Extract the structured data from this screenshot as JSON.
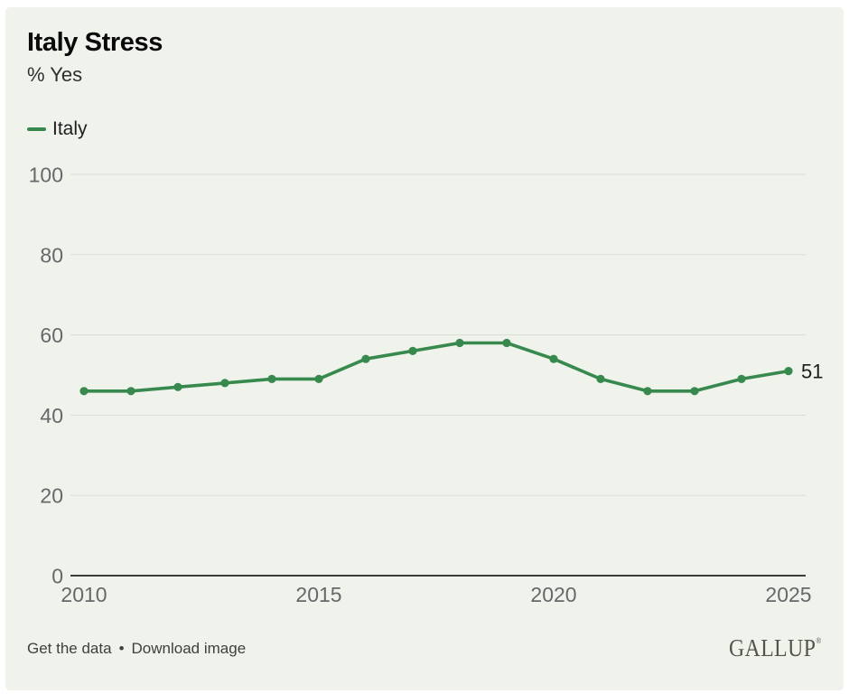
{
  "header": {
    "title": "Italy Stress",
    "subtitle": "% Yes"
  },
  "legend": {
    "items": [
      {
        "label": "Italy",
        "color": "#38894e"
      }
    ]
  },
  "footer": {
    "links": [
      {
        "label": "Get the data"
      },
      {
        "label": "Download image"
      }
    ],
    "separator": "•",
    "brand": "GALLUP",
    "brand_mark": "®"
  },
  "colors": {
    "card_background": "#eff3ec",
    "page_background": "#ffffff",
    "line": "#38894e",
    "grid": "#d9ded6",
    "axis": "#3d3d3d",
    "tick_label": "#66686a",
    "end_label": "#1c1c1c"
  },
  "chart_data": {
    "type": "line",
    "title": "Italy Stress",
    "ylabel": "% Yes",
    "x": [
      2010,
      2011,
      2012,
      2013,
      2014,
      2015,
      2016,
      2017,
      2018,
      2019,
      2020,
      2021,
      2022,
      2023,
      2024,
      2025
    ],
    "series": [
      {
        "name": "Italy",
        "color": "#38894e",
        "values": [
          46,
          46,
          47,
          48,
          49,
          49,
          54,
          56,
          58,
          58,
          54,
          49,
          46,
          46,
          49,
          51
        ]
      }
    ],
    "ylim": [
      0,
      100
    ],
    "yticks": [
      0,
      20,
      40,
      60,
      80,
      100
    ],
    "xticks": [
      2010,
      2015,
      2020,
      2025
    ],
    "grid": true,
    "legend_position": "top-left",
    "end_label": "51"
  }
}
